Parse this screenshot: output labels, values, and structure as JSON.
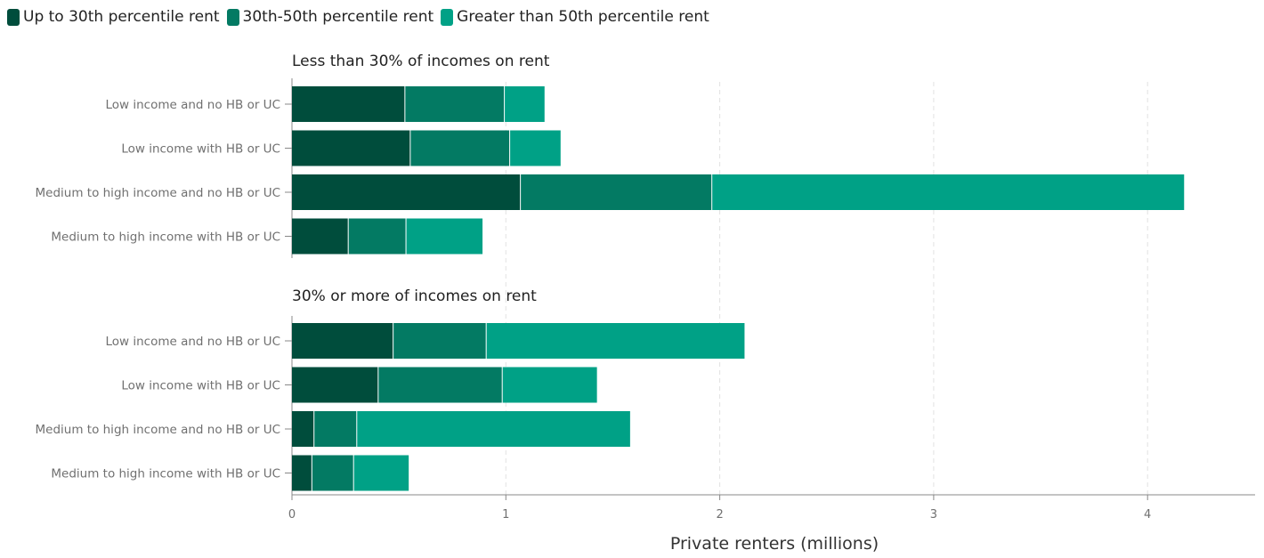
{
  "legend": {
    "items": [
      {
        "label": "Up to 30th percentile rent",
        "color": "#004d3c"
      },
      {
        "label": "30th-50th percentile rent",
        "color": "#037a63"
      },
      {
        "label": "Greater than 50th percentile rent",
        "color": "#00a186"
      }
    ]
  },
  "chart_data": [
    {
      "type": "bar",
      "orientation": "horizontal",
      "stacked": true,
      "title": "Less than 30% of incomes on rent",
      "categories": [
        "Low income and no HB or UC",
        "Low income with HB or UC",
        "Medium to high income and no HB or UC",
        "Medium to high income with HB or UC"
      ],
      "series": [
        {
          "name": "Up to 30th percentile rent",
          "values": [
            0.53,
            0.555,
            1.07,
            0.265
          ]
        },
        {
          "name": "30th-50th percentile rent",
          "values": [
            0.465,
            0.465,
            0.895,
            0.27
          ]
        },
        {
          "name": "Greater than 50th percentile rent",
          "values": [
            0.19,
            0.24,
            2.21,
            0.36
          ]
        }
      ],
      "xlim": [
        0,
        4.5
      ]
    },
    {
      "type": "bar",
      "orientation": "horizontal",
      "stacked": true,
      "title": "30% or more of incomes on rent",
      "categories": [
        "Low income and no HB or UC",
        "Low income with HB or UC",
        "Medium to high income and no HB or UC",
        "Medium to high income with HB or UC"
      ],
      "series": [
        {
          "name": "Up to 30th percentile rent",
          "values": [
            0.475,
            0.405,
            0.105,
            0.095
          ]
        },
        {
          "name": "30th-50th percentile rent",
          "values": [
            0.435,
            0.58,
            0.2,
            0.195
          ]
        },
        {
          "name": "Greater than 50th percentile rent",
          "values": [
            1.21,
            0.445,
            1.28,
            0.26
          ]
        }
      ],
      "xlim": [
        0,
        4.5
      ]
    }
  ],
  "xaxis": {
    "label": "Private renters (millions)",
    "ticks": [
      "0",
      "1",
      "2",
      "3",
      "4"
    ],
    "tick_values": [
      0,
      1,
      2,
      3,
      4
    ],
    "grid": true
  }
}
